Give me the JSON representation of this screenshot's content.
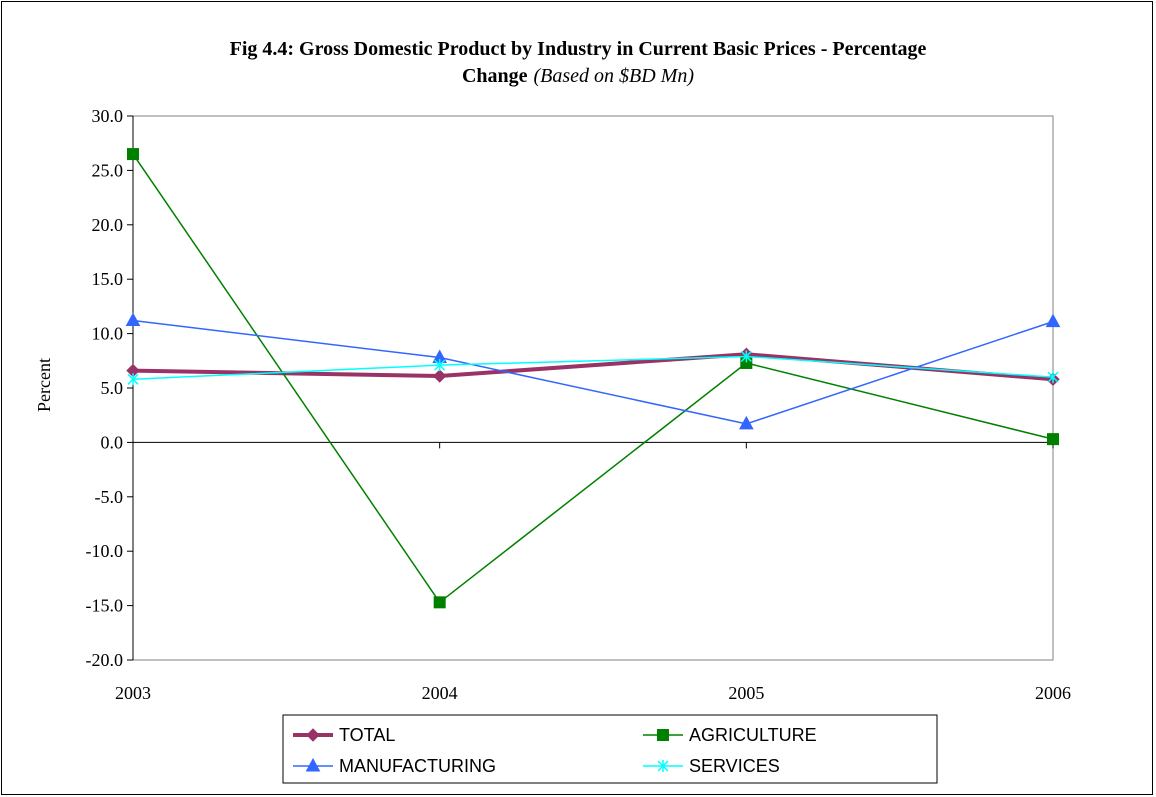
{
  "chart_data": {
    "type": "line",
    "title_line1": "Fig 4.4: Gross Domestic Product by Industry in Current Basic Prices - Percentage",
    "title_line2_bold": "Change",
    "title_line2_note": "(Based on $BD Mn)",
    "xlabel": "",
    "ylabel": "Percent",
    "categories": [
      "2003",
      "2004",
      "2005",
      "2006"
    ],
    "ylim": [
      -20,
      30
    ],
    "ytick_step": 5,
    "ytick_labels": [
      "30.0",
      "25.0",
      "20.0",
      "15.0",
      "10.0",
      "5.0",
      "0.0",
      "-5.0",
      "-10.0",
      "-15.0",
      "-20.0"
    ],
    "grid": false,
    "legend_position": "bottom",
    "series": [
      {
        "name": "TOTAL",
        "values": [
          6.6,
          6.1,
          8.1,
          5.8
        ],
        "color": "#993366",
        "marker": "diamond",
        "width": 4
      },
      {
        "name": "AGRICULTURE",
        "values": [
          26.5,
          -14.7,
          7.3,
          0.3
        ],
        "color": "#008000",
        "marker": "square",
        "width": 1.5
      },
      {
        "name": "MANUFACTURING",
        "values": [
          11.2,
          7.8,
          1.7,
          11.1
        ],
        "color": "#3366FF",
        "marker": "triangle",
        "width": 1.5
      },
      {
        "name": "SERVICES",
        "values": [
          5.8,
          7.1,
          7.9,
          6.0
        ],
        "color": "#00FFFF",
        "marker": "star",
        "width": 1.5
      }
    ]
  }
}
